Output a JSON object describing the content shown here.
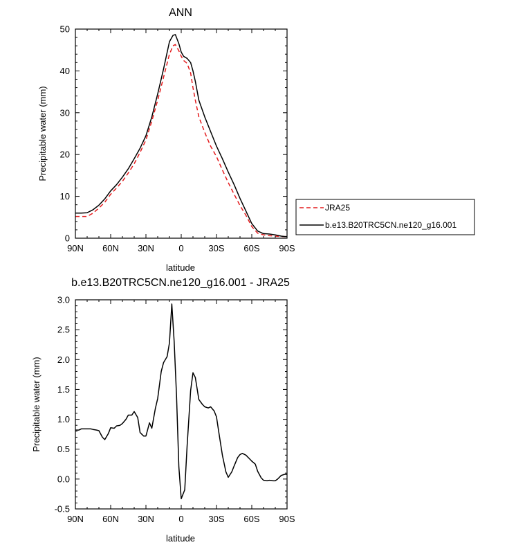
{
  "colors": {
    "model": "#000000",
    "obs": "#e41a1c",
    "background": "#ffffff"
  },
  "chart_data": [
    {
      "type": "line",
      "title": "ANN",
      "xlabel": "latitude",
      "ylabel": "Precipitable water (mm)",
      "xlim": [
        -90,
        90
      ],
      "ylim": [
        0,
        50
      ],
      "x_ticks": [
        -90,
        -60,
        -30,
        0,
        30,
        60,
        90
      ],
      "x_tick_labels": [
        "90N",
        "60N",
        "30N",
        "0",
        "30S",
        "60S",
        "90S"
      ],
      "y_ticks": [
        0,
        10,
        20,
        30,
        40,
        50
      ],
      "y_tick_labels": [
        "0",
        "10",
        "20",
        "30",
        "40",
        "50"
      ],
      "legend_position": "right",
      "grid": false,
      "series": [
        {
          "name": "JRA25",
          "style": "dashed",
          "color": "#e41a1c",
          "x": [
            -90,
            -85,
            -80,
            -75,
            -70,
            -65,
            -60,
            -55,
            -50,
            -45,
            -40,
            -35,
            -30,
            -25,
            -20,
            -15,
            -10,
            -7,
            -5,
            -2,
            0,
            2,
            5,
            8,
            10,
            12,
            15,
            20,
            25,
            30,
            35,
            40,
            45,
            50,
            55,
            60,
            65,
            70,
            75,
            80,
            85,
            88,
            90
          ],
          "y": [
            5.2,
            5.2,
            5.2,
            6.0,
            7.2,
            8.6,
            10.5,
            12.0,
            13.6,
            15.6,
            17.8,
            20.5,
            23.5,
            28.0,
            33.0,
            38.5,
            44.0,
            46.0,
            46.3,
            44.8,
            43.5,
            42.5,
            41.8,
            39.5,
            36.0,
            33.0,
            29.0,
            25.3,
            22.0,
            19.5,
            16.3,
            13.3,
            10.5,
            7.8,
            5.5,
            2.8,
            1.2,
            0.8,
            0.6,
            0.5,
            0.4,
            0.4,
            0.4
          ]
        },
        {
          "name": "b.e13.B20TRC5CN.ne120_g16.001",
          "style": "solid",
          "color": "#000000",
          "x": [
            -90,
            -85,
            -80,
            -75,
            -70,
            -65,
            -60,
            -55,
            -50,
            -45,
            -40,
            -35,
            -30,
            -25,
            -20,
            -15,
            -10,
            -7,
            -5,
            -2,
            0,
            2,
            5,
            8,
            10,
            12,
            15,
            20,
            25,
            30,
            35,
            40,
            45,
            50,
            55,
            60,
            65,
            70,
            75,
            80,
            85,
            88,
            90
          ],
          "y": [
            6.0,
            6.0,
            6.1,
            6.8,
            7.9,
            9.4,
            11.3,
            12.8,
            14.6,
            16.6,
            19.0,
            21.5,
            24.5,
            29.0,
            34.5,
            40.5,
            47.0,
            48.5,
            48.7,
            46.5,
            44.5,
            43.5,
            43.0,
            42.0,
            40.0,
            37.5,
            33.0,
            29.0,
            25.5,
            22.0,
            19.0,
            15.8,
            12.8,
            9.5,
            6.5,
            3.5,
            1.7,
            1.1,
            1.0,
            0.8,
            0.5,
            0.4,
            0.4
          ]
        }
      ]
    },
    {
      "type": "line",
      "title": "b.e13.B20TRC5CN.ne120_g16.001 - JRA25",
      "xlabel": "latitude",
      "ylabel": "Precipitable water (mm)",
      "xlim": [
        -90,
        90
      ],
      "ylim": [
        -0.5,
        3.0
      ],
      "x_ticks": [
        -90,
        -60,
        -30,
        0,
        30,
        60,
        90
      ],
      "x_tick_labels": [
        "90N",
        "60N",
        "30N",
        "0",
        "30S",
        "60S",
        "90S"
      ],
      "y_ticks": [
        -0.5,
        0.0,
        0.5,
        1.0,
        1.5,
        2.0,
        2.5,
        3.0
      ],
      "y_tick_labels": [
        "-0.5",
        "0.0",
        "0.5",
        "1.0",
        "1.5",
        "2.0",
        "2.5",
        "3.0"
      ],
      "grid": false,
      "series": [
        {
          "style": "solid",
          "color": "#000000",
          "x": [
            -90,
            -87,
            -85,
            -82,
            -80,
            -77,
            -75,
            -72,
            -70,
            -67,
            -65,
            -62,
            -60,
            -57,
            -55,
            -52,
            -50,
            -47,
            -45,
            -42,
            -40,
            -37,
            -35,
            -32,
            -30,
            -27,
            -25,
            -22,
            -20,
            -17,
            -15,
            -12,
            -10,
            -8,
            -6,
            -4,
            -2,
            0,
            3,
            5,
            8,
            10,
            12,
            15,
            18,
            20,
            23,
            25,
            28,
            30,
            32,
            35,
            38,
            40,
            43,
            45,
            48,
            50,
            52,
            55,
            58,
            60,
            63,
            65,
            68,
            70,
            73,
            75,
            78,
            80,
            82,
            85,
            88,
            90
          ],
          "y": [
            0.82,
            0.82,
            0.84,
            0.84,
            0.84,
            0.84,
            0.83,
            0.82,
            0.81,
            0.7,
            0.66,
            0.76,
            0.86,
            0.85,
            0.89,
            0.9,
            0.93,
            1.0,
            1.07,
            1.07,
            1.13,
            1.03,
            0.78,
            0.72,
            0.72,
            0.94,
            0.85,
            1.18,
            1.35,
            1.8,
            1.95,
            2.05,
            2.28,
            2.93,
            2.3,
            1.4,
            0.2,
            -0.33,
            -0.18,
            0.55,
            1.48,
            1.78,
            1.7,
            1.33,
            1.25,
            1.21,
            1.19,
            1.21,
            1.14,
            1.04,
            0.78,
            0.4,
            0.12,
            0.03,
            0.12,
            0.22,
            0.36,
            0.41,
            0.43,
            0.4,
            0.34,
            0.3,
            0.25,
            0.13,
            0.02,
            -0.02,
            -0.03,
            -0.02,
            -0.03,
            -0.03,
            0.0,
            0.06,
            0.08,
            0.08
          ]
        }
      ]
    }
  ]
}
